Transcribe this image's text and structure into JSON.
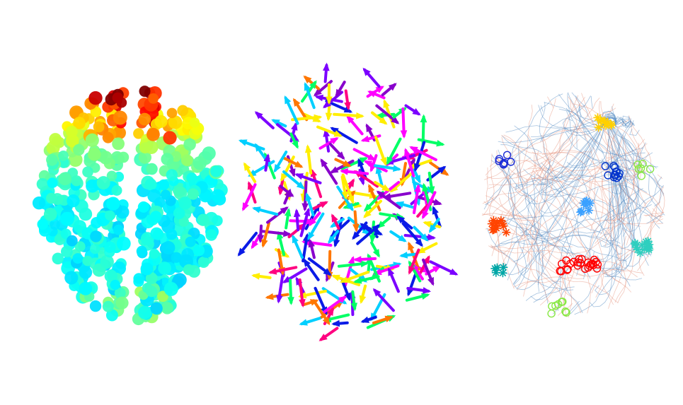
{
  "figure": {
    "panels": [
      {
        "id": "scalp-electrode-map",
        "kind": "colored-dot-brain-map",
        "hemispheres": 2,
        "dot_count": 520,
        "colormap": "jet",
        "hot_region": "frontal"
      },
      {
        "id": "direction-arrow-field",
        "kind": "multicolor-arrow-field",
        "arrow_count": 230,
        "colors": [
          "#ff00ff",
          "#7b00ff",
          "#0a1be6",
          "#00cfff",
          "#00ff66",
          "#ffee00",
          "#ff7700",
          "#ff0080",
          "#8800cc"
        ]
      },
      {
        "id": "fiber-streamline-map",
        "kind": "streamlines-with-clusters",
        "streamline_colors": [
          "#5b8fc4",
          "#e89a86"
        ],
        "cluster_colors": [
          "#ffd000",
          "#1a2bd6",
          "#0033cc",
          "#3aa0ff",
          "#ff4400",
          "#ff0000",
          "#2ecfbf",
          "#88e844",
          "#00a6a6"
        ]
      }
    ]
  }
}
